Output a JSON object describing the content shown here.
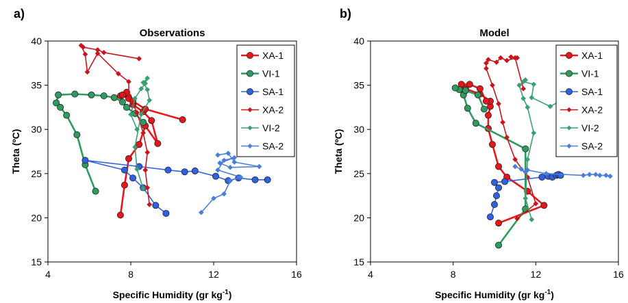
{
  "chart_data": [
    {
      "type": "line",
      "panel_label": "a)",
      "title": "Observations",
      "xlabel": "Specific Humidity (gr kg",
      "xlabel_sup": "-1",
      "xlabel_end": ")",
      "ylabel": "Theta (ºC)",
      "xlim": [
        4,
        16
      ],
      "ylim": [
        15,
        40
      ],
      "xticks": [
        "4",
        "8",
        "12",
        "16"
      ],
      "yticks": [
        "15",
        "20",
        "25",
        "30",
        "35",
        "40"
      ],
      "legend_position": "top-right",
      "series": [
        {
          "name": "XA-1",
          "color": "#e8151b",
          "marker": "circle",
          "width": 2.6,
          "x": [
            7.5,
            7.7,
            7.9,
            8.4,
            8.7,
            9.3,
            9.0,
            8.6,
            8.1,
            7.9,
            7.5,
            7.8,
            7.6,
            7.9,
            8.1,
            8.7,
            10.5
          ],
          "y": [
            20.3,
            23.7,
            26.7,
            28.3,
            30.4,
            28.4,
            31.0,
            32.0,
            32.8,
            33.6,
            33.8,
            34.2,
            33.9,
            33.5,
            33.2,
            32.3,
            31.1
          ]
        },
        {
          "name": "VI-1",
          "color": "#2f9b5f",
          "marker": "circle",
          "width": 2.6,
          "x": [
            6.3,
            5.8,
            5.4,
            4.9,
            4.6,
            4.4,
            4.5,
            5.3,
            6.1,
            6.7,
            7.2,
            7.6,
            7.8,
            8.2,
            8.6
          ],
          "y": [
            23.0,
            26.0,
            29.4,
            31.6,
            32.5,
            33.0,
            33.9,
            34.0,
            33.9,
            33.8,
            33.6,
            33.1,
            32.5,
            31.8,
            30.8
          ]
        },
        {
          "name": "SA-1",
          "color": "#2f62e0",
          "marker": "circle",
          "width": 1.6,
          "x": [
            9.7,
            9.2,
            8.6,
            8.1,
            7.7,
            5.8,
            8.4,
            9.8,
            10.6,
            11.1,
            12.1,
            12.7,
            13.2,
            14.0,
            14.6
          ],
          "y": [
            20.5,
            21.4,
            23.4,
            24.5,
            25.4,
            26.5,
            25.8,
            25.4,
            25.2,
            25.3,
            24.7,
            24.2,
            24.5,
            24.3,
            24.3
          ]
        },
        {
          "name": "XA-2",
          "color": "#c8141a",
          "marker": "diamond",
          "width": 1.6,
          "x": [
            8.9,
            8.8,
            8.7,
            8.8,
            8.6,
            8.3,
            7.9,
            7.9,
            7.4,
            6.4,
            5.9,
            5.8,
            5.6,
            5.7,
            6.4,
            6.7,
            8.4
          ],
          "y": [
            21.5,
            23.4,
            25.4,
            27.4,
            29.6,
            31.9,
            33.9,
            35.4,
            36.3,
            38.6,
            36.5,
            38.5,
            39.5,
            39.3,
            39.0,
            38.7,
            38.0
          ]
        },
        {
          "name": "VI-2",
          "color": "#3aa074",
          "marker": "diamond",
          "width": 1.6,
          "x": [
            8.6,
            8.3,
            8.2,
            8.5,
            8.9,
            8.8,
            8.6,
            8.8,
            8.7,
            8.5,
            8.2,
            8.0,
            8.3
          ],
          "y": [
            23.3,
            25.5,
            28.0,
            31.7,
            33.3,
            34.5,
            35.3,
            35.8,
            35.2,
            34.6,
            33.5,
            31.7,
            30.0
          ]
        },
        {
          "name": "SA-2",
          "color": "#4a7fd6",
          "marker": "diamond",
          "width": 1.6,
          "x": [
            11.4,
            12.0,
            12.5,
            12.8,
            13.3,
            12.2,
            12.5,
            13.0,
            12.3,
            12.8,
            14.2,
            13.0,
            12.7,
            12.2
          ],
          "y": [
            20.6,
            22.2,
            22.7,
            24.2,
            24.6,
            25.4,
            26.5,
            26.8,
            26.2,
            25.7,
            25.8,
            26.3,
            27.3,
            27.1
          ]
        }
      ]
    },
    {
      "type": "line",
      "panel_label": "b)",
      "title": "Model",
      "xlabel": "Specific Humidity (gr kg",
      "xlabel_sup": "-1",
      "xlabel_end": ")",
      "ylabel": "Theta (ºC)",
      "xlim": [
        4,
        16
      ],
      "ylim": [
        15,
        40
      ],
      "xticks": [
        "4",
        "8",
        "12",
        "16"
      ],
      "yticks": [
        "15",
        "20",
        "25",
        "30",
        "35",
        "40"
      ],
      "legend_position": "top-right",
      "series": [
        {
          "name": "XA-1",
          "color": "#e8151b",
          "marker": "circle",
          "width": 2.6,
          "x": [
            10.2,
            12.4,
            11.6,
            10.6,
            10.2,
            9.9,
            9.7,
            9.7,
            9.8,
            9.8,
            9.3,
            8.6,
            8.4,
            8.8,
            9.3,
            9.6
          ],
          "y": [
            19.4,
            21.4,
            23.0,
            24.6,
            25.8,
            28.3,
            30.1,
            31.6,
            32.6,
            33.2,
            34.0,
            34.6,
            35.1,
            35.1,
            34.6,
            33.2
          ]
        },
        {
          "name": "VI-1",
          "color": "#2f9b5f",
          "marker": "circle",
          "width": 2.6,
          "x": [
            10.2,
            11.5,
            11.5,
            9.1,
            8.7,
            8.5,
            8.3,
            8.1,
            8.6,
            9.2,
            9.5
          ],
          "y": [
            16.9,
            21.0,
            27.8,
            30.7,
            32.4,
            33.9,
            34.5,
            34.7,
            34.4,
            33.9,
            32.3
          ]
        },
        {
          "name": "SA-1",
          "color": "#2f62e0",
          "marker": "circle",
          "width": 1.6,
          "x": [
            9.8,
            10.0,
            10.1,
            10.2,
            10.0,
            10.5,
            12.3,
            12.6,
            12.8,
            13.0,
            13.1,
            13.2
          ],
          "y": [
            20.1,
            21.5,
            22.5,
            23.4,
            24.0,
            24.1,
            24.6,
            24.7,
            24.6,
            24.8,
            24.9,
            24.8
          ]
        },
        {
          "name": "XA-2",
          "color": "#c8141a",
          "marker": "diamond",
          "width": 1.6,
          "x": [
            11.1,
            12.0,
            11.6,
            11.0,
            10.6,
            10.4,
            10.2,
            9.9,
            9.6,
            9.6,
            9.7,
            10.1,
            10.3,
            10.6,
            11.1,
            10.8,
            11.0,
            11.4
          ],
          "y": [
            19.9,
            21.6,
            24.6,
            26.6,
            29.1,
            30.8,
            32.9,
            35.0,
            36.9,
            37.5,
            37.9,
            37.6,
            38.1,
            37.8,
            38.1,
            38.2,
            38.1,
            34.6
          ]
        },
        {
          "name": "VI-2",
          "color": "#3aa074",
          "marker": "diamond",
          "width": 1.6,
          "x": [
            11.8,
            11.5,
            11.6,
            11.9,
            11.6,
            11.4,
            11.2,
            11.5,
            11.4,
            11.9,
            11.8,
            12.7,
            13.1,
            13.4
          ],
          "y": [
            19.8,
            22.2,
            26.6,
            29.6,
            32.5,
            33.5,
            35.0,
            35.6,
            35.4,
            35.1,
            33.6,
            32.6,
            33.1,
            33.8
          ]
        },
        {
          "name": "SA-2",
          "color": "#4a7fd6",
          "marker": "diamond",
          "width": 1.6,
          "x": [
            11.0,
            11.3,
            11.5,
            11.6,
            12.5,
            14.3,
            14.6,
            14.9,
            15.1,
            15.4,
            15.6
          ],
          "y": [
            25.8,
            25.5,
            25.2,
            25.4,
            25.0,
            24.8,
            24.9,
            24.9,
            24.8,
            24.8,
            24.7
          ]
        }
      ]
    }
  ]
}
